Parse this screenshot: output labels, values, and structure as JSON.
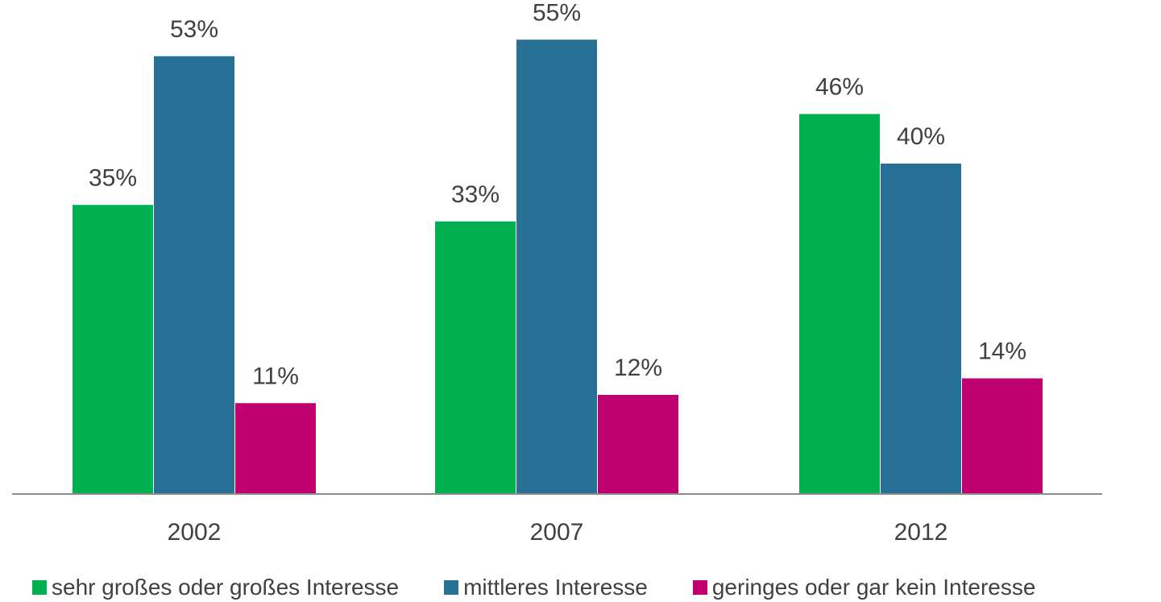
{
  "chart_data": {
    "type": "bar",
    "categories": [
      "2002",
      "2007",
      "2012"
    ],
    "series": [
      {
        "name": "sehr großes oder großes Interesse",
        "values": [
          35,
          33,
          46
        ],
        "labels": [
          "35%",
          "33%",
          "46%"
        ],
        "color": "#00b050"
      },
      {
        "name": "mittleres Interesse",
        "values": [
          53,
          55,
          40
        ],
        "labels": [
          "53%",
          "55%",
          "40%"
        ],
        "color": "#277096"
      },
      {
        "name": "geringes oder gar kein Interesse",
        "values": [
          11,
          12,
          14
        ],
        "labels": [
          "11%",
          "12%",
          "14%"
        ],
        "color": "#c0006f"
      }
    ],
    "ylim": [
      0,
      60
    ],
    "grid": false,
    "legend_position": "bottom"
  }
}
